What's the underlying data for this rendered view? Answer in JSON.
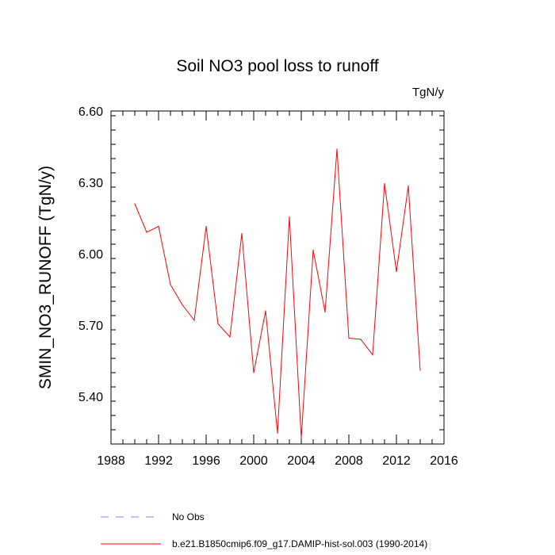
{
  "chart_data": {
    "type": "line",
    "title": "Soil NO3 pool loss to runoff",
    "units_label": "TgN/y",
    "ylabel": "SMIN_NO3_RUNOFF  (TgN/y)",
    "xlabel": "",
    "xlim": [
      1988,
      2016
    ],
    "ylim": [
      5.2,
      6.6
    ],
    "x_ticks": [
      1988,
      1992,
      1996,
      2000,
      2004,
      2008,
      2012,
      2016
    ],
    "x_tick_labels": [
      "1988",
      "1992",
      "1996",
      "2000",
      "2004",
      "2008",
      "2012",
      "2016"
    ],
    "y_ticks": [
      5.4,
      5.7,
      6.0,
      6.3,
      6.6
    ],
    "y_tick_labels": [
      "5.40",
      "5.70",
      "6.00",
      "6.30",
      "6.60"
    ],
    "grid": false,
    "legend_position": "bottom",
    "series": [
      {
        "name": "b.e21.B1850cmip6.f09_g17.DAMIP-hist-sol.003 (1990-2014)",
        "color": "#ff0000",
        "style": "solid",
        "x": [
          1990,
          1991,
          1992,
          1993,
          1994,
          1995,
          1996,
          1997,
          1998,
          1999,
          2000,
          2001,
          2002,
          2003,
          2004,
          2005,
          2006,
          2007,
          2008,
          2009,
          2010,
          2011,
          2012,
          2013,
          2014
        ],
        "y": [
          6.21,
          6.09,
          6.115,
          5.87,
          5.785,
          5.72,
          6.115,
          5.705,
          5.65,
          6.085,
          5.5,
          5.76,
          5.245,
          6.155,
          5.225,
          6.015,
          5.755,
          6.44,
          5.645,
          5.64,
          5.575,
          6.295,
          5.925,
          6.285,
          5.51
        ]
      },
      {
        "name": "No Obs",
        "color": "#8080ff",
        "style": "dashed",
        "x": [],
        "y": []
      }
    ]
  }
}
